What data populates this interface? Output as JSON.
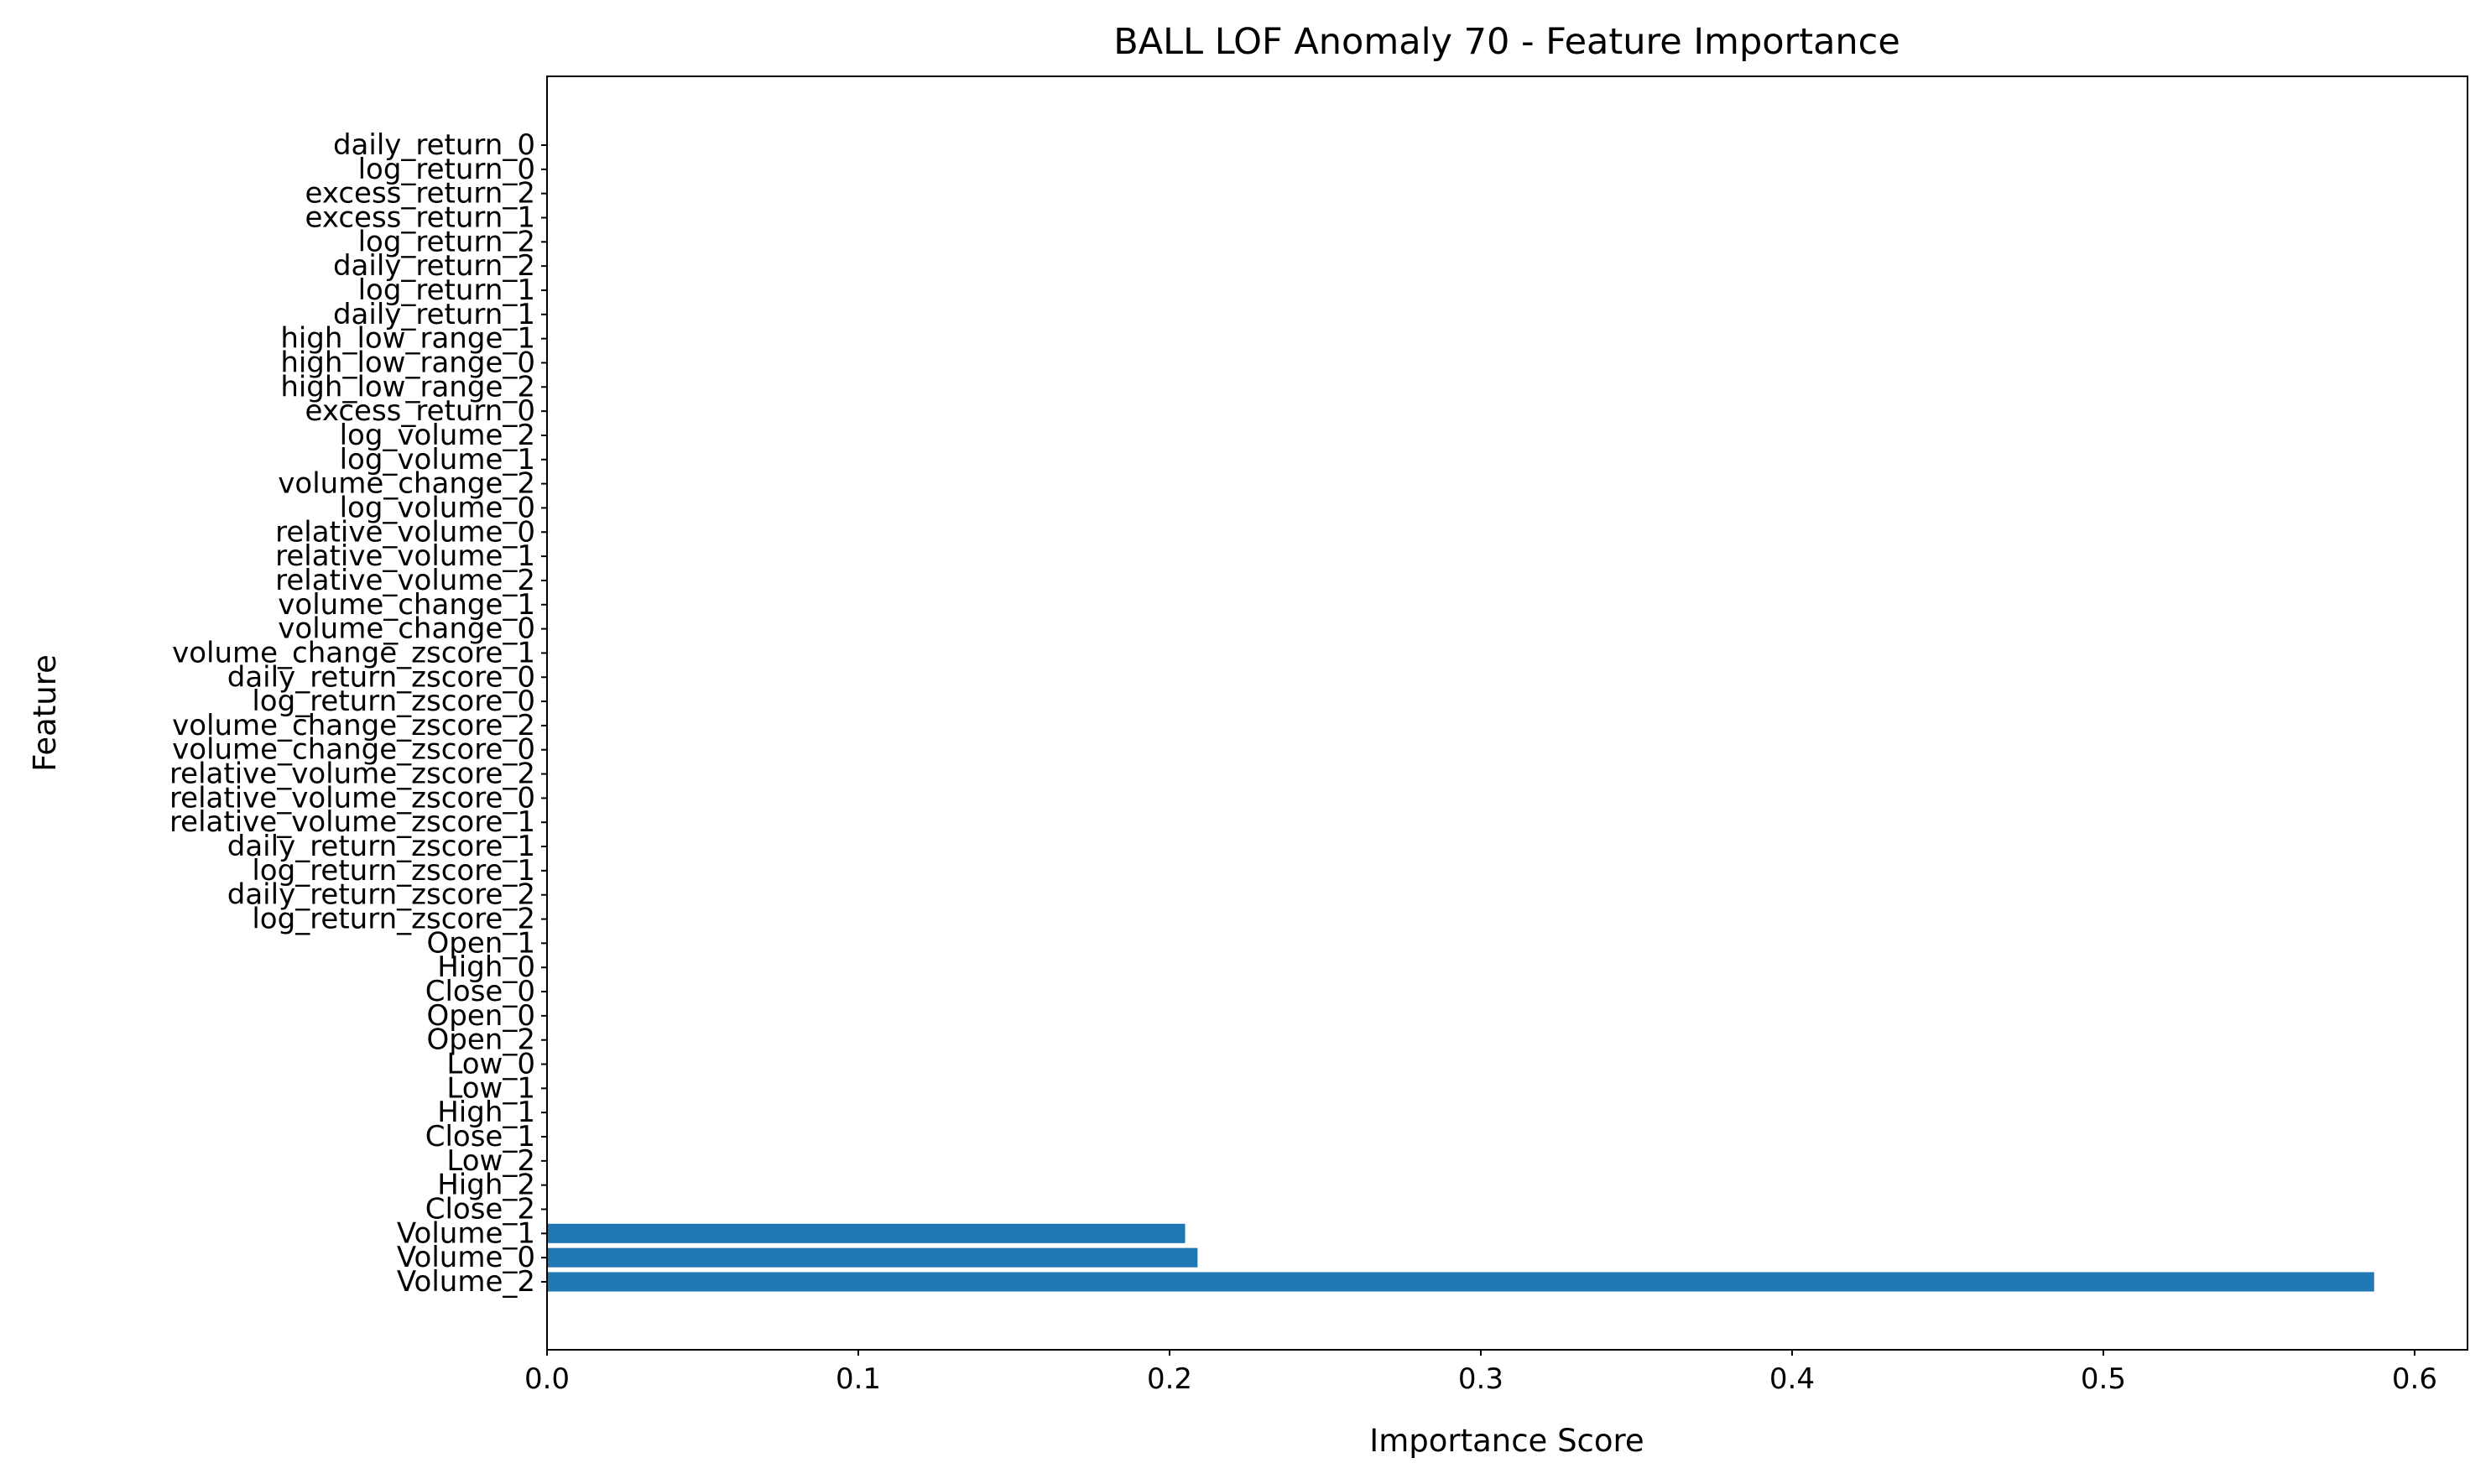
{
  "chart_data": {
    "type": "bar",
    "orientation": "horizontal",
    "title": "BALL LOF Anomaly 70 - Feature Importance",
    "xlabel": "Importance Score",
    "ylabel": "Feature",
    "xlim": [
      0,
      0.617
    ],
    "xticks": [
      "0.0",
      "0.1",
      "0.2",
      "0.3",
      "0.4",
      "0.5",
      "0.6"
    ],
    "grid": false,
    "bar_color": "#1f77b4",
    "categories": [
      "Volume_2",
      "Volume_0",
      "Volume_1",
      "Close_2",
      "High_2",
      "Low_2",
      "Close_1",
      "High_1",
      "Low_1",
      "Low_0",
      "Open_2",
      "Open_0",
      "Close_0",
      "High_0",
      "Open_1",
      "log_return_zscore_2",
      "daily_return_zscore_2",
      "log_return_zscore_1",
      "daily_return_zscore_1",
      "relative_volume_zscore_1",
      "relative_volume_zscore_0",
      "relative_volume_zscore_2",
      "volume_change_zscore_0",
      "volume_change_zscore_2",
      "log_return_zscore_0",
      "daily_return_zscore_0",
      "volume_change_zscore_1",
      "volume_change_0",
      "volume_change_1",
      "relative_volume_2",
      "relative_volume_1",
      "relative_volume_0",
      "log_volume_0",
      "volume_change_2",
      "log_volume_1",
      "log_volume_2",
      "excess_return_0",
      "high_low_range_2",
      "high_low_range_0",
      "high_low_range_1",
      "daily_return_1",
      "log_return_1",
      "daily_return_2",
      "log_return_2",
      "excess_return_1",
      "excess_return_2",
      "log_return_0",
      "daily_return_0"
    ],
    "values": [
      0.587,
      0.209,
      0.205,
      0,
      0,
      0,
      0,
      0,
      0,
      0,
      0,
      0,
      0,
      0,
      0,
      0,
      0,
      0,
      0,
      0,
      0,
      0,
      0,
      0,
      0,
      0,
      0,
      0,
      0,
      0,
      0,
      0,
      0,
      0,
      0,
      0,
      0,
      0,
      0,
      0,
      0,
      0,
      0,
      0,
      0,
      0,
      0,
      0
    ]
  }
}
